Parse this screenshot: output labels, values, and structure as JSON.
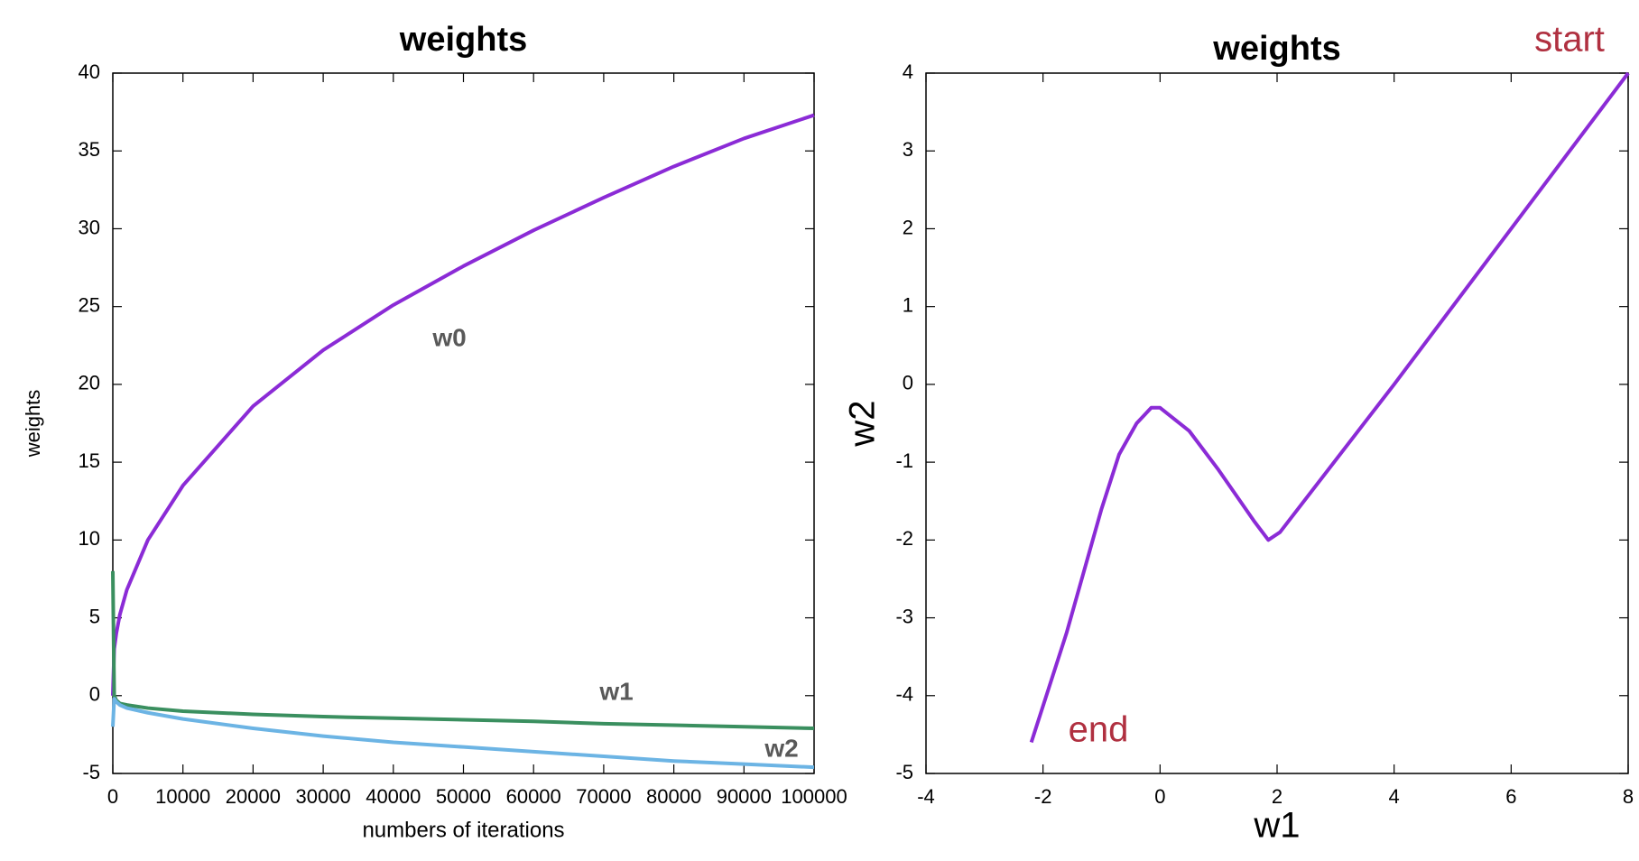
{
  "chart_data": [
    {
      "type": "line",
      "title": "weights",
      "xlabel": "numbers of iterations",
      "ylabel": "weights",
      "x": [
        0,
        200,
        500,
        1000,
        2000,
        5000,
        10000,
        20000,
        30000,
        40000,
        50000,
        60000,
        70000,
        80000,
        90000,
        100000
      ],
      "series": [
        {
          "name": "w0",
          "color": "#8b2bd6",
          "values": [
            0,
            3,
            4,
            5.2,
            6.8,
            10,
            13.5,
            18.6,
            22.2,
            25.1,
            27.6,
            29.9,
            32,
            34,
            35.8,
            37.3
          ]
        },
        {
          "name": "w1",
          "color": "#3a8f5f",
          "values": [
            8,
            0,
            -0.3,
            -0.5,
            -0.6,
            -0.8,
            -1,
            -1.2,
            -1.35,
            -1.45,
            -1.55,
            -1.65,
            -1.8,
            -1.9,
            -2,
            -2.1
          ]
        },
        {
          "name": "w2",
          "color": "#6cb4e4",
          "values": [
            -2,
            -0.2,
            -0.4,
            -0.6,
            -0.8,
            -1.1,
            -1.5,
            -2.1,
            -2.6,
            -3,
            -3.3,
            -3.6,
            -3.9,
            -4.2,
            -4.4,
            -4.6
          ]
        }
      ],
      "xlim": [
        0,
        100000
      ],
      "xticks": [
        0,
        10000,
        20000,
        30000,
        40000,
        50000,
        60000,
        70000,
        80000,
        90000,
        100000
      ],
      "ylim": [
        -5,
        40
      ],
      "yticks": [
        -5,
        0,
        5,
        10,
        15,
        20,
        25,
        30,
        35,
        40
      ]
    },
    {
      "type": "line",
      "title": "weights",
      "xlabel": "w1",
      "ylabel": "w2",
      "annotations": [
        "start",
        "end"
      ],
      "x": [
        8,
        6,
        4,
        2.05,
        1.85,
        1.6,
        1,
        0.5,
        0,
        -0.15,
        -0.4,
        -0.7,
        -1,
        -1.3,
        -1.6,
        -1.9,
        -2.2
      ],
      "series": [
        {
          "color": "#8b2bd6",
          "values": [
            4,
            2,
            0,
            -1.9,
            -2,
            -1.75,
            -1.1,
            -0.6,
            -0.3,
            -0.3,
            -0.5,
            -0.9,
            -1.6,
            -2.4,
            -3.2,
            -3.9,
            -4.6
          ]
        }
      ],
      "xlim": [
        -4,
        8
      ],
      "xticks": [
        -4,
        -2,
        0,
        2,
        4,
        6,
        8
      ],
      "ylim": [
        -5,
        4
      ],
      "yticks": [
        -5,
        -4,
        -3,
        -2,
        -1,
        0,
        1,
        2,
        3,
        4
      ]
    }
  ]
}
